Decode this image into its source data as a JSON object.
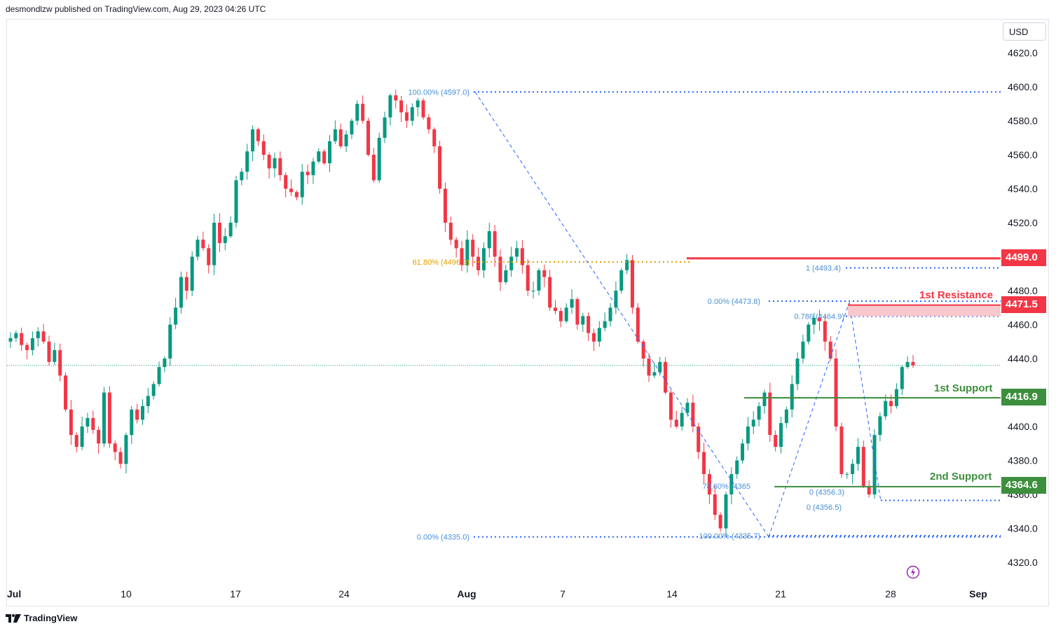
{
  "header": {
    "publisher": "desmondlzw published on TradingView.com, Aug 29, 2023 04:26 UTC"
  },
  "footer": {
    "brand": "TradingView"
  },
  "currency": "USD",
  "colors": {
    "up": "#089981",
    "down": "#f23645",
    "fib": "#2962ff",
    "fib_text": "#4a8fd6",
    "golden": "#e0a100",
    "resistance": "#f23645",
    "support": "#3d8f3d",
    "zone": "#f8c8cc",
    "lastprice": "#089981"
  },
  "levels": {
    "resistance_1": {
      "label": "1st Resistance",
      "value": "4471.5"
    },
    "resistance_top": {
      "value": "4499.0"
    },
    "support_1": {
      "label": "1st Support",
      "value": "4416.9"
    },
    "support_2": {
      "label": "2nd Support",
      "value": "4364.6"
    }
  },
  "fib_labels": {
    "f_100_top": "100.00% (4597.0)",
    "f_618": "61.80% (4496.9)",
    "f_0_top": "0.00% (4473.8)",
    "f_786_pct": "78.60% (4365",
    "f_100_bot": "100.00% (4335.7)",
    "f_0_bot": "0.00% (4335.0)",
    "e_1": "1 (4493.4)",
    "e_0786": "0.786 (4464.9)",
    "e_0_a": "0 (4356.3)",
    "e_0_b": "0 (4356.5)"
  },
  "chart_data": {
    "type": "candlestick",
    "ylim": [
      4310,
      4630
    ],
    "yticks": [
      4320,
      4340,
      4360,
      4380,
      4400,
      4420,
      4440,
      4460,
      4480,
      4500,
      4520,
      4540,
      4560,
      4580,
      4600,
      4620
    ],
    "xticks": [
      "Jul",
      "10",
      "17",
      "24",
      "Aug",
      "7",
      "14",
      "21",
      "28",
      "Sep"
    ],
    "last_price": 4436,
    "ohlc_path": [
      4450,
      4452,
      4455,
      4448,
      4445,
      4452,
      4456,
      4450,
      4438,
      4445,
      4430,
      4410,
      4395,
      4388,
      4400,
      4405,
      4398,
      4390,
      4420,
      4390,
      4385,
      4378,
      4395,
      4410,
      4404,
      4412,
      4418,
      4425,
      4435,
      4440,
      4460,
      4470,
      4488,
      4480,
      4500,
      4510,
      4505,
      4495,
      4520,
      4508,
      4512,
      4520,
      4545,
      4550,
      4562,
      4575,
      4568,
      4560,
      4552,
      4558,
      4548,
      4540,
      4538,
      4535,
      4550,
      4548,
      4556,
      4562,
      4555,
      4568,
      4575,
      4565,
      4572,
      4580,
      4590,
      4580,
      4560,
      4545,
      4570,
      4582,
      4595,
      4592,
      4585,
      4580,
      4588,
      4592,
      4582,
      4575,
      4565,
      4540,
      4520,
      4510,
      4505,
      4495,
      4510,
      4500,
      4492,
      4505,
      4515,
      4500,
      4485,
      4492,
      4500,
      4505,
      4495,
      4480,
      4480,
      4492,
      4488,
      4470,
      4468,
      4462,
      4470,
      4475,
      4460,
      4465,
      4455,
      4450,
      4458,
      4462,
      4470,
      4480,
      4492,
      4498,
      4470,
      4450,
      4440,
      4430,
      4432,
      4438,
      4420,
      4404,
      4400,
      4408,
      4414,
      4400,
      4385,
      4372,
      4360,
      4348,
      4340,
      4360,
      4372,
      4380,
      4390,
      4400,
      4404,
      4412,
      4420,
      4395,
      4388,
      4402,
      4410,
      4425,
      4440,
      4450,
      4460,
      4464,
      4462,
      4450,
      4440,
      4400,
      4372,
      4372,
      4378,
      4388,
      4365,
      4360,
      4395,
      4406,
      4415,
      4412,
      4422,
      4435,
      4438,
      4436
    ]
  }
}
